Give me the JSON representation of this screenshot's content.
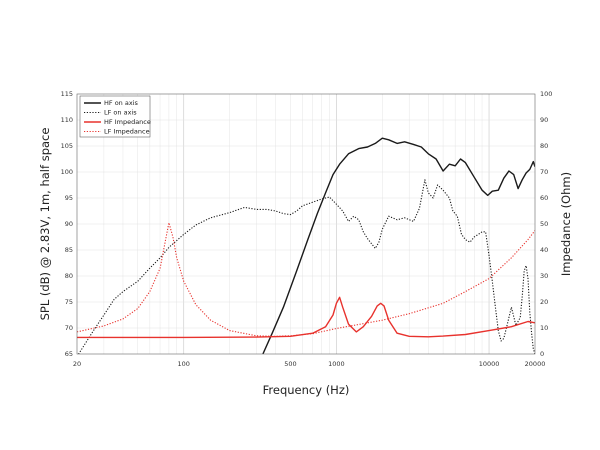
{
  "chart_data": {
    "type": "line",
    "xlabel": "Frequency (Hz)",
    "ylabel": "SPL (dB) @ 2.83V, 1m, half space",
    "y2label": "Impedance (Ohm)",
    "x_scale": "log",
    "xlim": [
      20,
      20000
    ],
    "ylim": [
      65,
      115
    ],
    "y2lim": [
      0,
      100
    ],
    "grid": true,
    "legend_position": "top-left",
    "x_tick_labels": [
      "20",
      "100",
      "500",
      "1000",
      "10000",
      "20000"
    ],
    "y_tick_labels": [
      "65",
      "70",
      "75",
      "80",
      "85",
      "90",
      "95",
      "100",
      "105",
      "110",
      "115"
    ],
    "y2_tick_labels": [
      "0",
      "10",
      "20",
      "30",
      "40",
      "50",
      "60",
      "70",
      "80",
      "90",
      "100"
    ],
    "series": [
      {
        "name": "HF on axis",
        "axis": "left",
        "color": "#1a1a1a",
        "style": "solid",
        "points": [
          [
            330,
            65
          ],
          [
            380,
            69
          ],
          [
            450,
            74
          ],
          [
            550,
            81
          ],
          [
            650,
            87
          ],
          [
            750,
            92
          ],
          [
            850,
            96
          ],
          [
            950,
            99.5
          ],
          [
            1050,
            101.5
          ],
          [
            1200,
            103.5
          ],
          [
            1400,
            104.5
          ],
          [
            1600,
            104.8
          ],
          [
            1800,
            105.5
          ],
          [
            2000,
            106.5
          ],
          [
            2200,
            106.2
          ],
          [
            2500,
            105.5
          ],
          [
            2800,
            105.8
          ],
          [
            3200,
            105.3
          ],
          [
            3600,
            104.8
          ],
          [
            4000,
            103.5
          ],
          [
            4500,
            102.5
          ],
          [
            5000,
            100.2
          ],
          [
            5500,
            101.5
          ],
          [
            6000,
            101.2
          ],
          [
            6500,
            102.5
          ],
          [
            7000,
            101.8
          ],
          [
            8000,
            99
          ],
          [
            9000,
            96.5
          ],
          [
            9800,
            95.5
          ],
          [
            10500,
            96.3
          ],
          [
            11500,
            96.5
          ],
          [
            12500,
            98.8
          ],
          [
            13500,
            100.2
          ],
          [
            14500,
            99.5
          ],
          [
            15500,
            96.8
          ],
          [
            16500,
            98.5
          ],
          [
            17500,
            99.8
          ],
          [
            18500,
            100.5
          ],
          [
            19500,
            102
          ],
          [
            20000,
            101
          ]
        ]
      },
      {
        "name": "LF on axis",
        "axis": "left",
        "color": "#1a1a1a",
        "style": "dotted",
        "points": [
          [
            20,
            64.5
          ],
          [
            25,
            69
          ],
          [
            30,
            72.5
          ],
          [
            35,
            75.5
          ],
          [
            40,
            77
          ],
          [
            50,
            79
          ],
          [
            60,
            81.5
          ],
          [
            70,
            83.5
          ],
          [
            80,
            85.5
          ],
          [
            100,
            88
          ],
          [
            120,
            89.8
          ],
          [
            150,
            91.2
          ],
          [
            200,
            92.2
          ],
          [
            250,
            93.2
          ],
          [
            300,
            92.8
          ],
          [
            350,
            92.8
          ],
          [
            400,
            92.5
          ],
          [
            450,
            92
          ],
          [
            500,
            91.8
          ],
          [
            550,
            92.5
          ],
          [
            600,
            93.5
          ],
          [
            700,
            94.2
          ],
          [
            800,
            94.8
          ],
          [
            900,
            95.2
          ],
          [
            1000,
            93.8
          ],
          [
            1100,
            92.5
          ],
          [
            1200,
            90.5
          ],
          [
            1300,
            91.5
          ],
          [
            1400,
            90.8
          ],
          [
            1500,
            88.5
          ],
          [
            1600,
            87.2
          ],
          [
            1700,
            86.2
          ],
          [
            1800,
            85.3
          ],
          [
            1900,
            86.5
          ],
          [
            2000,
            89
          ],
          [
            2200,
            91.5
          ],
          [
            2500,
            90.8
          ],
          [
            2800,
            91.2
          ],
          [
            3200,
            90.5
          ],
          [
            3500,
            93
          ],
          [
            3800,
            98.5
          ],
          [
            4000,
            96
          ],
          [
            4300,
            95
          ],
          [
            4600,
            97.5
          ],
          [
            5000,
            96.5
          ],
          [
            5500,
            95
          ],
          [
            5800,
            92.5
          ],
          [
            6200,
            91.5
          ],
          [
            6600,
            88
          ],
          [
            7000,
            87
          ],
          [
            7500,
            86.5
          ],
          [
            8000,
            87.5
          ],
          [
            8500,
            88
          ],
          [
            9000,
            88.5
          ],
          [
            9500,
            88.5
          ],
          [
            10000,
            84
          ],
          [
            10500,
            79
          ],
          [
            11000,
            74
          ],
          [
            11500,
            69.5
          ],
          [
            12000,
            67.5
          ],
          [
            12500,
            68
          ],
          [
            13000,
            70
          ],
          [
            14000,
            74
          ],
          [
            15000,
            70.5
          ],
          [
            16000,
            72
          ],
          [
            16500,
            76
          ],
          [
            17000,
            81
          ],
          [
            17500,
            82
          ],
          [
            18000,
            79.5
          ],
          [
            18500,
            73
          ],
          [
            19000,
            69
          ],
          [
            19500,
            66
          ],
          [
            20000,
            65
          ]
        ]
      },
      {
        "name": "HF Impedance",
        "axis": "right",
        "color": "#e8322d",
        "style": "solid",
        "points": [
          [
            20,
            6.4
          ],
          [
            100,
            6.4
          ],
          [
            300,
            6.5
          ],
          [
            500,
            6.8
          ],
          [
            700,
            8
          ],
          [
            850,
            10.5
          ],
          [
            950,
            15
          ],
          [
            1000,
            19.5
          ],
          [
            1050,
            21.8
          ],
          [
            1100,
            18
          ],
          [
            1200,
            11.5
          ],
          [
            1350,
            8.5
          ],
          [
            1500,
            10.5
          ],
          [
            1700,
            14.5
          ],
          [
            1850,
            18.5
          ],
          [
            1950,
            19.5
          ],
          [
            2050,
            18.5
          ],
          [
            2200,
            13
          ],
          [
            2500,
            8
          ],
          [
            3000,
            6.8
          ],
          [
            4000,
            6.6
          ],
          [
            5000,
            6.9
          ],
          [
            7000,
            7.5
          ],
          [
            10000,
            9
          ],
          [
            14000,
            10.5
          ],
          [
            18000,
            12.5
          ],
          [
            20000,
            12
          ]
        ]
      },
      {
        "name": "LF Impedance",
        "axis": "right",
        "color": "#e8322d",
        "style": "dotted",
        "points": [
          [
            20,
            8.5
          ],
          [
            30,
            10.8
          ],
          [
            40,
            13.5
          ],
          [
            50,
            17.5
          ],
          [
            60,
            24
          ],
          [
            70,
            33
          ],
          [
            75,
            42
          ],
          [
            80,
            50.5
          ],
          [
            85,
            45
          ],
          [
            90,
            37
          ],
          [
            100,
            28
          ],
          [
            120,
            19
          ],
          [
            150,
            13
          ],
          [
            200,
            9
          ],
          [
            300,
            7
          ],
          [
            400,
            6.8
          ],
          [
            500,
            7
          ],
          [
            700,
            7.8
          ],
          [
            1000,
            9.8
          ],
          [
            2000,
            13
          ],
          [
            3000,
            15.5
          ],
          [
            5000,
            19.5
          ],
          [
            7000,
            24
          ],
          [
            10000,
            29
          ],
          [
            14000,
            37
          ],
          [
            18000,
            44
          ],
          [
            20000,
            47.5
          ]
        ]
      }
    ]
  }
}
